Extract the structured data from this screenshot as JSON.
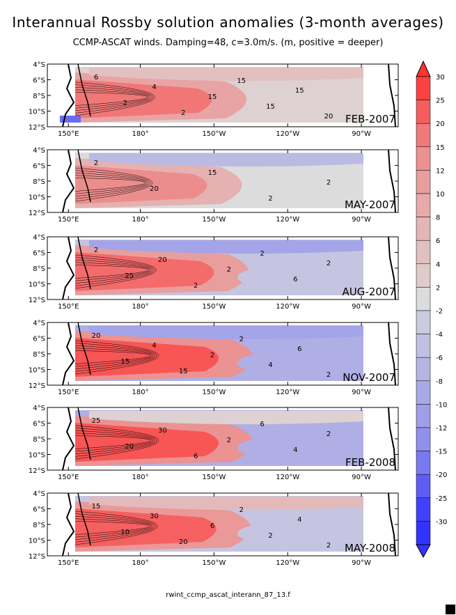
{
  "title": "Interannual Rossby solution anomalies (3-month averages)",
  "subtitle": "CCMP-ASCAT winds. Damping=48, c=3.0m/s. (m, positive = deeper)",
  "footer": "rwint_ccmp_ascat_interann_87_13.f",
  "chart_data": {
    "type": "heatmap",
    "units": "m",
    "x_tick_labels": [
      "150°E",
      "180°",
      "150°W",
      "120°W",
      "90°W"
    ],
    "y_tick_labels": [
      "4°S",
      "6°S",
      "8°S",
      "10°S",
      "12°S"
    ],
    "colorbar": {
      "ticks": [
        30,
        25,
        20,
        15,
        12,
        10,
        8,
        6,
        4,
        2,
        -2,
        -4,
        -6,
        -8,
        -10,
        -12,
        -15,
        -20,
        -25,
        -30
      ],
      "max_color": "#ff3333",
      "min_color": "#3333ff",
      "zero_color": "#dcdcdc"
    },
    "panels": [
      {
        "label": "FEB-2007",
        "contour_labels": [
          "6",
          "2",
          "4",
          "2",
          "15",
          "15",
          "15",
          "15",
          "20"
        ],
        "core": {
          "value": 18
        },
        "upper": {
          "value": 5
        },
        "east": {
          "value": 2
        },
        "west_sw": {
          "value": -20
        }
      },
      {
        "label": "MAY-2007",
        "contour_labels": [
          "2",
          "20",
          "15",
          "2",
          "2"
        ],
        "core": {
          "value": 14
        },
        "upper": {
          "value": -6
        },
        "east": {
          "value": 0
        }
      },
      {
        "label": "AUG-2007",
        "contour_labels": [
          "2",
          "25",
          "20",
          "2",
          "2",
          "2",
          "6",
          "2"
        ],
        "core": {
          "value": 20
        },
        "upper": {
          "value": -10
        },
        "east": {
          "value": -4
        }
      },
      {
        "label": "NOV-2007",
        "contour_labels": [
          "20",
          "15",
          "4",
          "15",
          "2",
          "2",
          "4",
          "6",
          "2"
        ],
        "core": {
          "value": 24
        },
        "upper": {
          "value": -10
        },
        "east": {
          "value": -8
        }
      },
      {
        "label": "FEB-2008",
        "contour_labels": [
          "25",
          "20",
          "30",
          "6",
          "2",
          "6",
          "4",
          "2"
        ],
        "core": {
          "value": 24
        },
        "upper": {
          "value": 2
        },
        "east": {
          "value": -8
        }
      },
      {
        "label": "MAY-2008",
        "contour_labels": [
          "15",
          "10",
          "30",
          "20",
          "6",
          "2",
          "2",
          "4",
          "2"
        ],
        "core": {
          "value": 22
        },
        "upper": {
          "value": 6
        },
        "east": {
          "value": -4
        }
      }
    ]
  }
}
